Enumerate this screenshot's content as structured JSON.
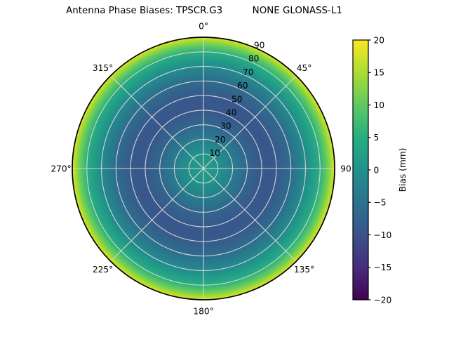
{
  "title": "Antenna Phase Biases: TPSCR.G3          NONE GLONASS-L1",
  "polar": {
    "angular_tick_labels": [
      "0°",
      "45°",
      "90",
      "135°",
      "180°",
      "225°",
      "270°",
      "315°"
    ],
    "radial_tick_labels": [
      "10",
      "20",
      "30",
      "40",
      "50",
      "60",
      "70",
      "80",
      "90"
    ]
  },
  "colorbar": {
    "label": "Bias (mm)",
    "tick_labels": [
      "20",
      "15",
      "10",
      "5",
      "0",
      "−5",
      "−10",
      "−15",
      "−20"
    ]
  },
  "colors": {
    "grid": "#d4d4d4",
    "outline": "#000000",
    "background": "#ffffff"
  },
  "chart_data": {
    "type": "heatmap",
    "projection": "polar",
    "title": "Antenna Phase Biases: TPSCR.G3          NONE GLONASS-L1",
    "colormap": "viridis",
    "colormap_stops": [
      "#440154",
      "#472d7b",
      "#3b528b",
      "#2c728e",
      "#21918c",
      "#27ad81",
      "#5ec962",
      "#aadc32",
      "#fde725"
    ],
    "clim": [
      -20,
      20
    ],
    "colorbar_label": "Bias (mm)",
    "colorbar_ticks": [
      20,
      15,
      10,
      5,
      0,
      -5,
      -10,
      -15,
      -20
    ],
    "radial_range": [
      0,
      90
    ],
    "radial_gridlines": [
      10,
      20,
      30,
      40,
      50,
      60,
      70,
      80,
      90
    ],
    "radial_label_azimuth_deg": 22.5,
    "angular_gridlines_deg": [
      0,
      45,
      90,
      135,
      180,
      225,
      270,
      315
    ],
    "azimuthally_symmetric": true,
    "radial_profile": {
      "zenith_deg": [
        0,
        10,
        20,
        30,
        40,
        45,
        50,
        60,
        70,
        75,
        80,
        85,
        90
      ],
      "bias_mm": [
        2,
        0.5,
        -3,
        -6.8,
        -9,
        -9.2,
        -8.7,
        -5.8,
        -1,
        2,
        5.5,
        11,
        18
      ]
    }
  }
}
